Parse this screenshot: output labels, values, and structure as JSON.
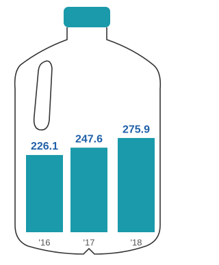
{
  "chart_data": {
    "type": "bar",
    "categories": [
      "'16",
      "'17",
      "'18"
    ],
    "values": [
      226.1,
      247.6,
      275.9
    ],
    "color": "#1a9aaa",
    "label_color": "#1f5fa8"
  }
}
